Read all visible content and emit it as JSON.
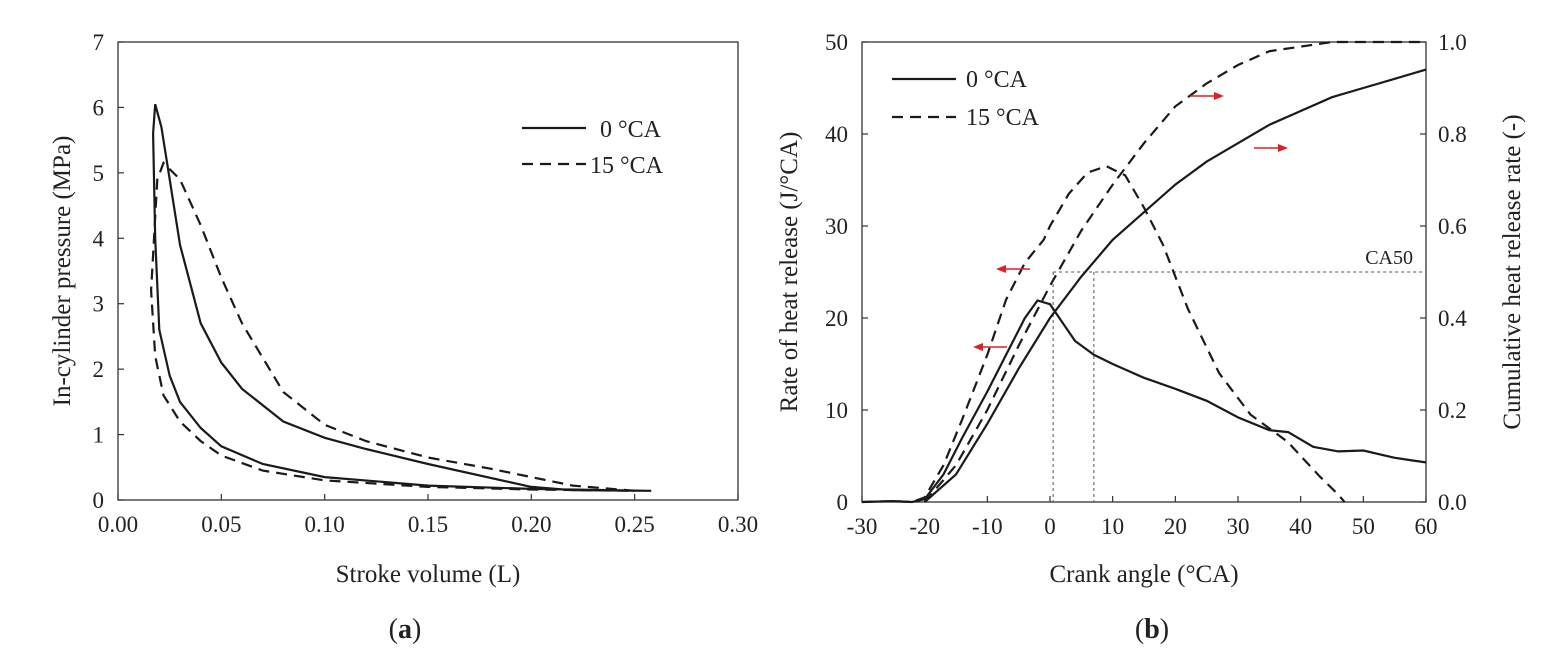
{
  "chart_data": [
    {
      "type": "line",
      "panel": "(a)",
      "panel_letter": "a",
      "xlabel": "Stroke volume (L)",
      "ylabel": "In-cylinder pressure (MPa)",
      "xlim": [
        0.0,
        0.3
      ],
      "ylim": [
        0,
        7
      ],
      "xticks": [
        "0.00",
        "0.05",
        "0.10",
        "0.15",
        "0.20",
        "0.25",
        "0.30"
      ],
      "yticks": [
        "0",
        "1",
        "2",
        "3",
        "4",
        "5",
        "6",
        "7"
      ],
      "legend_position": "top-right",
      "series": [
        {
          "name": "0 °CA",
          "style": "solid",
          "points": [
            [
              0.258,
              0.14
            ],
            [
              0.22,
              0.15
            ],
            [
              0.2,
              0.2
            ],
            [
              0.15,
              0.55
            ],
            [
              0.12,
              0.78
            ],
            [
              0.1,
              0.95
            ],
            [
              0.08,
              1.2
            ],
            [
              0.06,
              1.7
            ],
            [
              0.05,
              2.1
            ],
            [
              0.04,
              2.7
            ],
            [
              0.03,
              3.9
            ],
            [
              0.025,
              4.9
            ],
            [
              0.021,
              5.7
            ],
            [
              0.018,
              6.05
            ],
            [
              0.017,
              5.6
            ],
            [
              0.018,
              4.0
            ],
            [
              0.02,
              2.6
            ],
            [
              0.025,
              1.9
            ],
            [
              0.03,
              1.5
            ],
            [
              0.04,
              1.1
            ],
            [
              0.05,
              0.82
            ],
            [
              0.07,
              0.55
            ],
            [
              0.1,
              0.35
            ],
            [
              0.15,
              0.22
            ],
            [
              0.2,
              0.17
            ],
            [
              0.258,
              0.14
            ]
          ]
        },
        {
          "name": "15 °CA",
          "style": "dashed",
          "points": [
            [
              0.25,
              0.14
            ],
            [
              0.22,
              0.22
            ],
            [
              0.18,
              0.48
            ],
            [
              0.15,
              0.65
            ],
            [
              0.12,
              0.9
            ],
            [
              0.1,
              1.15
            ],
            [
              0.08,
              1.65
            ],
            [
              0.06,
              2.7
            ],
            [
              0.05,
              3.4
            ],
            [
              0.04,
              4.2
            ],
            [
              0.03,
              4.9
            ],
            [
              0.022,
              5.15
            ],
            [
              0.019,
              4.9
            ],
            [
              0.016,
              3.2
            ],
            [
              0.018,
              2.2
            ],
            [
              0.022,
              1.6
            ],
            [
              0.03,
              1.2
            ],
            [
              0.04,
              0.9
            ],
            [
              0.05,
              0.68
            ],
            [
              0.07,
              0.45
            ],
            [
              0.1,
              0.3
            ],
            [
              0.15,
              0.2
            ],
            [
              0.2,
              0.16
            ],
            [
              0.25,
              0.14
            ]
          ]
        }
      ]
    },
    {
      "type": "line",
      "panel": "(b)",
      "panel_letter": "b",
      "xlabel": "Crank angle (°CA)",
      "ylabel": "Rate of heat release (J/°CA)",
      "y2label": "Cumulative heat release rate (-)",
      "xlim": [
        -30,
        60
      ],
      "ylim": [
        0,
        50
      ],
      "y2lim": [
        0.0,
        1.0
      ],
      "xticks": [
        "-30",
        "-20",
        "-10",
        "0",
        "10",
        "20",
        "30",
        "40",
        "50",
        "60"
      ],
      "yticks": [
        "0",
        "10",
        "20",
        "30",
        "40",
        "50"
      ],
      "y2ticks": [
        "0.0",
        "0.2",
        "0.4",
        "0.6",
        "0.8",
        "1.0"
      ],
      "annotation": "CA50",
      "ca50_value": 0.5,
      "ca50_angles": [
        0.5,
        7
      ],
      "legend_position": "top-left",
      "series": [
        {
          "name": "0 °CA",
          "style": "solid",
          "axis": "left",
          "points": [
            [
              -30,
              0
            ],
            [
              -25,
              0.1
            ],
            [
              -22,
              0
            ],
            [
              -20,
              0.3
            ],
            [
              -17,
              3
            ],
            [
              -14,
              7
            ],
            [
              -10,
              12
            ],
            [
              -7,
              16
            ],
            [
              -4,
              20
            ],
            [
              -2,
              21.9
            ],
            [
              0,
              21.5
            ],
            [
              2,
              19.5
            ],
            [
              4,
              17.5
            ],
            [
              7,
              16
            ],
            [
              10,
              15
            ],
            [
              15,
              13.5
            ],
            [
              20,
              12.3
            ],
            [
              25,
              11
            ],
            [
              30,
              9.2
            ],
            [
              35,
              7.8
            ],
            [
              38,
              7.6
            ],
            [
              42,
              6
            ],
            [
              46,
              5.5
            ],
            [
              50,
              5.6
            ],
            [
              55,
              4.8
            ],
            [
              58,
              4.5
            ],
            [
              60,
              4.3
            ]
          ]
        },
        {
          "name": "15 °CA",
          "style": "dashed",
          "axis": "left",
          "points": [
            [
              -30,
              0
            ],
            [
              -25,
              0.1
            ],
            [
              -22,
              0
            ],
            [
              -20,
              0.5
            ],
            [
              -17,
              4
            ],
            [
              -14,
              9
            ],
            [
              -10,
              16
            ],
            [
              -7,
              22
            ],
            [
              -4,
              26
            ],
            [
              -1,
              28.5
            ],
            [
              0,
              30
            ],
            [
              3,
              33.5
            ],
            [
              6,
              35.8
            ],
            [
              9,
              36.5
            ],
            [
              12,
              35.5
            ],
            [
              15,
              32
            ],
            [
              18,
              28
            ],
            [
              22,
              21
            ],
            [
              27,
              14
            ],
            [
              32,
              9.5
            ],
            [
              35,
              8
            ],
            [
              38,
              6.5
            ],
            [
              40,
              5
            ],
            [
              43,
              2.8
            ],
            [
              46,
              0.8
            ],
            [
              47,
              0
            ]
          ]
        },
        {
          "name": "0 °CA",
          "style": "solid",
          "axis": "right",
          "points": [
            [
              -20,
              0.0
            ],
            [
              -15,
              0.06
            ],
            [
              -10,
              0.17
            ],
            [
              -5,
              0.29
            ],
            [
              0,
              0.4
            ],
            [
              5,
              0.49
            ],
            [
              10,
              0.57
            ],
            [
              15,
              0.63
            ],
            [
              20,
              0.69
            ],
            [
              25,
              0.74
            ],
            [
              30,
              0.78
            ],
            [
              35,
              0.82
            ],
            [
              40,
              0.85
            ],
            [
              45,
              0.88
            ],
            [
              50,
              0.9
            ],
            [
              55,
              0.92
            ],
            [
              60,
              0.94
            ]
          ]
        },
        {
          "name": "15 °CA",
          "style": "dashed",
          "axis": "right",
          "points": [
            [
              -20,
              0.0
            ],
            [
              -15,
              0.08
            ],
            [
              -10,
              0.2
            ],
            [
              -5,
              0.34
            ],
            [
              0,
              0.47
            ],
            [
              5,
              0.59
            ],
            [
              10,
              0.69
            ],
            [
              15,
              0.78
            ],
            [
              20,
              0.86
            ],
            [
              25,
              0.91
            ],
            [
              30,
              0.95
            ],
            [
              35,
              0.98
            ],
            [
              40,
              0.99
            ],
            [
              45,
              1.0
            ],
            [
              60,
              1.0
            ]
          ]
        }
      ]
    }
  ]
}
